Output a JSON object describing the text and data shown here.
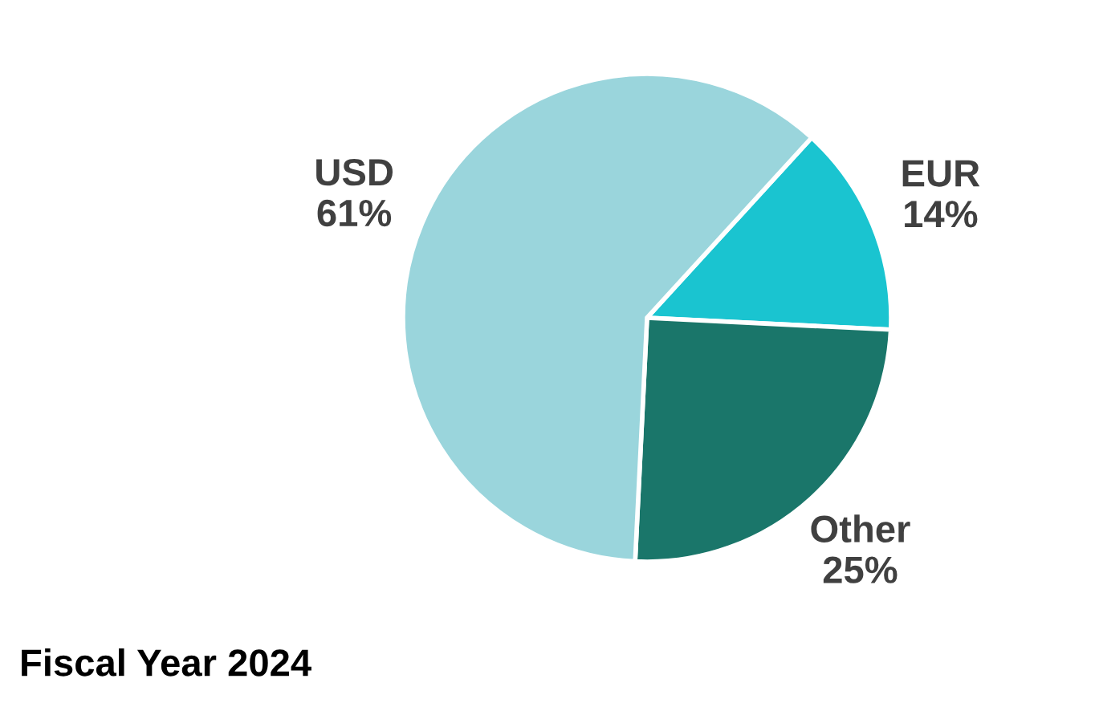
{
  "chart_data": {
    "type": "pie",
    "title": "Fiscal Year 2024",
    "categories": [
      "EUR",
      "Other",
      "USD"
    ],
    "values": [
      14,
      25,
      61
    ],
    "value_labels": [
      "14%",
      "25%",
      "61%"
    ],
    "colors": [
      "#1ac4d0",
      "#1a766a",
      "#9ad5dc"
    ],
    "legend": false
  }
}
